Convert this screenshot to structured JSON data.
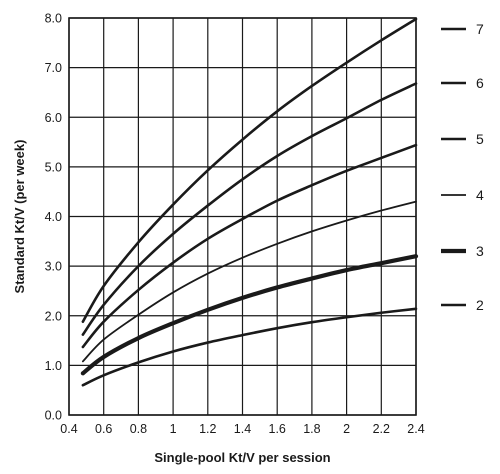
{
  "chart_data": {
    "type": "line",
    "title": "",
    "xlabel": "Single-pool Kt/V per session",
    "ylabel": "Standard Kt/V (per week)",
    "xlim": [
      0.4,
      2.4
    ],
    "ylim": [
      0.0,
      8.0
    ],
    "xticks": [
      0.4,
      0.6,
      0.8,
      1.0,
      1.2,
      1.4,
      1.6,
      1.8,
      2.0,
      2.2,
      2.4
    ],
    "xtick_labels": [
      "0.4",
      "0.6",
      "0.8",
      "1",
      "1.2",
      "1.4",
      "1.6",
      "1.8",
      "2",
      "2.2",
      "2.4"
    ],
    "yticks": [
      0,
      1,
      2,
      3,
      4,
      5,
      6,
      7,
      8
    ],
    "ytick_labels": [
      "0.0",
      "1.0",
      "2.0",
      "3.0",
      "4.0",
      "5.0",
      "6.0",
      "7.0",
      "8.0"
    ],
    "grid": true,
    "legend_position": "right",
    "line_color": "#1a1a1a",
    "series": [
      {
        "name": "7",
        "stroke_weight": "medium",
        "x": [
          0.48,
          0.6,
          0.8,
          1.0,
          1.2,
          1.4,
          1.6,
          1.8,
          2.0,
          2.2,
          2.4
        ],
        "y": [
          1.88,
          2.6,
          3.48,
          4.24,
          4.93,
          5.55,
          6.12,
          6.63,
          7.1,
          7.55,
          7.98
        ]
      },
      {
        "name": "6",
        "stroke_weight": "medium",
        "x": [
          0.48,
          0.6,
          0.8,
          1.0,
          1.2,
          1.4,
          1.6,
          1.8,
          2.0,
          2.2,
          2.4
        ],
        "y": [
          1.62,
          2.22,
          3.0,
          3.65,
          4.22,
          4.75,
          5.22,
          5.62,
          5.98,
          6.35,
          6.68
        ]
      },
      {
        "name": "5",
        "stroke_weight": "medium",
        "x": [
          0.48,
          0.6,
          0.8,
          1.0,
          1.2,
          1.4,
          1.6,
          1.8,
          2.0,
          2.2,
          2.4
        ],
        "y": [
          1.37,
          1.88,
          2.52,
          3.07,
          3.55,
          3.95,
          4.32,
          4.63,
          4.92,
          5.18,
          5.44
        ]
      },
      {
        "name": "4",
        "stroke_weight": "thin",
        "x": [
          0.48,
          0.6,
          0.8,
          1.0,
          1.2,
          1.4,
          1.6,
          1.8,
          2.0,
          2.2,
          2.4
        ],
        "y": [
          1.08,
          1.52,
          2.02,
          2.47,
          2.85,
          3.17,
          3.45,
          3.7,
          3.92,
          4.12,
          4.3
        ]
      },
      {
        "name": "3",
        "stroke_weight": "thick",
        "x": [
          0.48,
          0.6,
          0.8,
          1.0,
          1.2,
          1.4,
          1.6,
          1.8,
          2.0,
          2.2,
          2.4
        ],
        "y": [
          0.84,
          1.17,
          1.55,
          1.85,
          2.12,
          2.36,
          2.57,
          2.75,
          2.92,
          3.06,
          3.2
        ]
      },
      {
        "name": "2",
        "stroke_weight": "medium",
        "x": [
          0.48,
          0.6,
          0.8,
          1.0,
          1.2,
          1.4,
          1.6,
          1.8,
          2.0,
          2.2,
          2.4
        ],
        "y": [
          0.6,
          0.8,
          1.06,
          1.28,
          1.46,
          1.61,
          1.75,
          1.87,
          1.97,
          2.06,
          2.14
        ]
      }
    ]
  }
}
